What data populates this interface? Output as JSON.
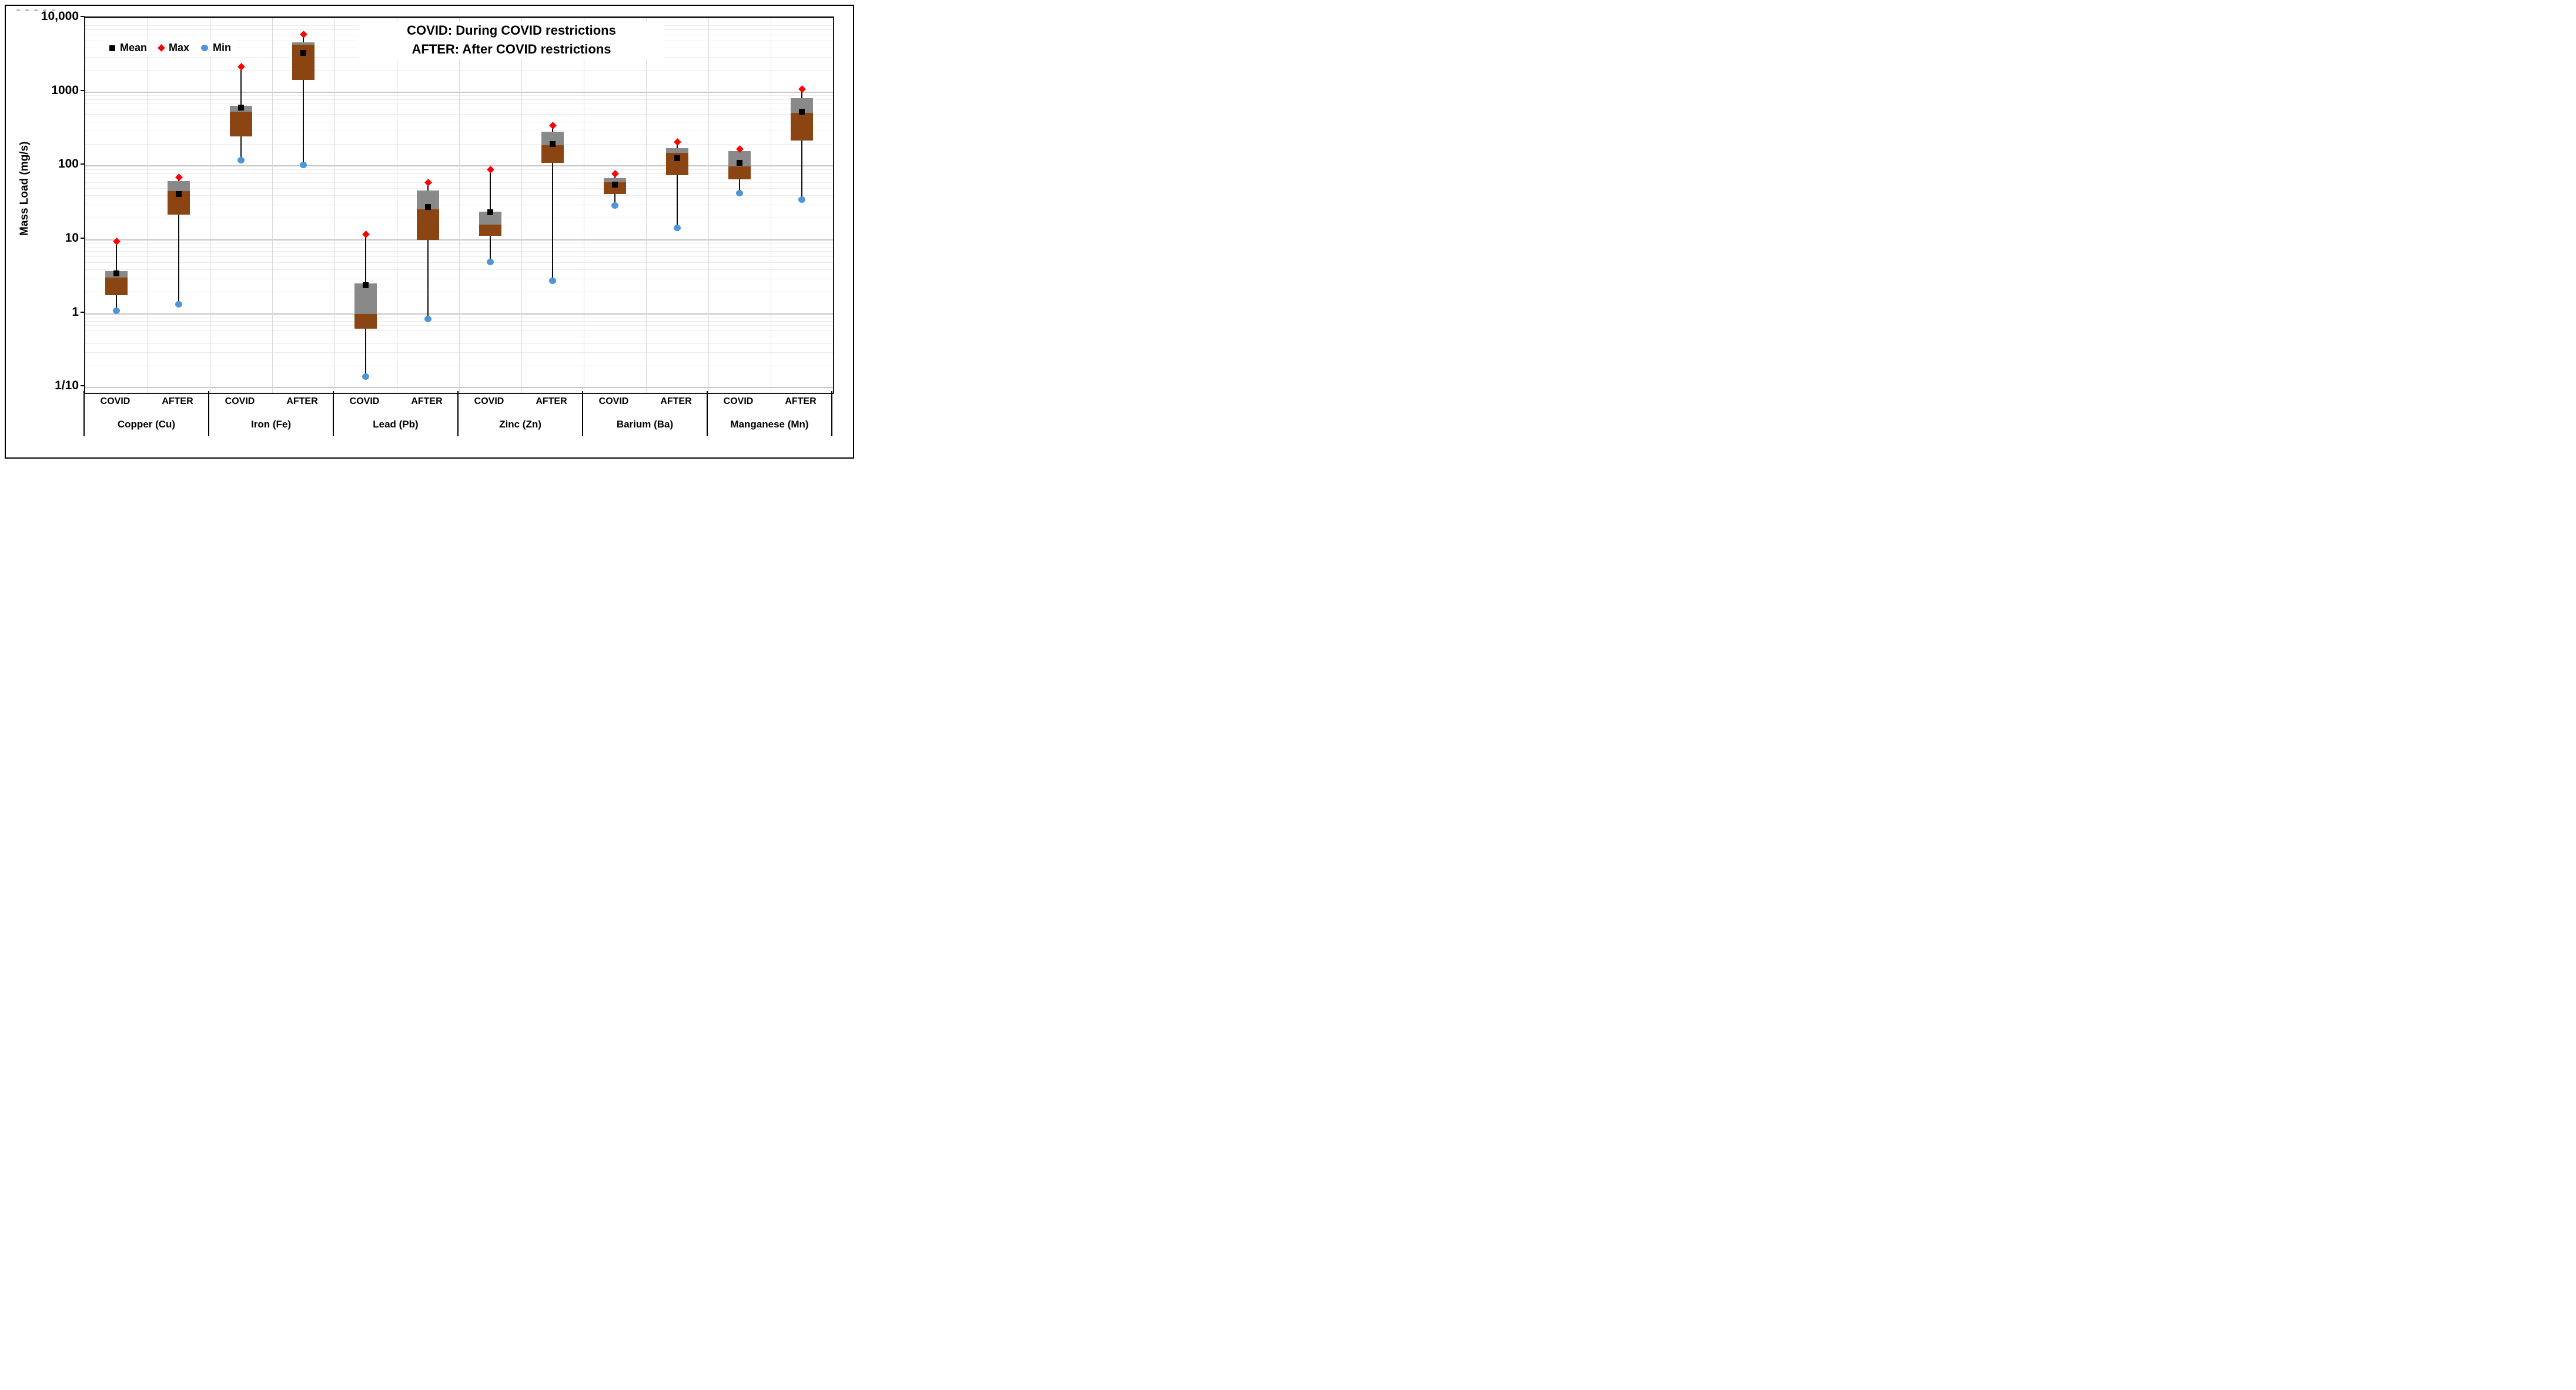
{
  "title": {
    "line1": "COVID: During COVID restrictions",
    "line2": "AFTER: After COVID restrictions"
  },
  "chart_data": {
    "type": "box",
    "title": "COVID: During COVID restrictions | AFTER: After COVID restrictions",
    "ylabel": "Mass Load (mg/s)",
    "y_axis": {
      "scale": "log",
      "ticks": [
        {
          "label": "10,000",
          "value": 10000
        },
        {
          "label": "1000",
          "value": 1000
        },
        {
          "label": "100",
          "value": 100
        },
        {
          "label": "10",
          "value": 10
        },
        {
          "label": "1",
          "value": 1
        },
        {
          "label": "1/10",
          "value": 0.1
        }
      ],
      "ylim": [
        0.055,
        10000
      ],
      "grid": "major decade lines + minor log lines"
    },
    "x_axis": {
      "conditions": [
        "COVID",
        "AFTER"
      ],
      "group_labels": [
        "Copper (Cu)",
        "Iron (Fe)",
        "Lead (Pb)",
        "Zinc (Zn)",
        "Barium (Ba)",
        "Manganese (Mn)"
      ]
    },
    "legend": [
      {
        "label": "Mean",
        "marker": "square",
        "color": "#000000"
      },
      {
        "label": "Max",
        "marker": "diamond",
        "color": "#ff0000"
      },
      {
        "label": "Min",
        "marker": "circle",
        "color": "#4e95d9"
      }
    ],
    "groups": [
      {
        "metal": "Copper (Cu)",
        "boxes": [
          {
            "condition": "COVID",
            "max": 9.5,
            "q3": 3.8,
            "median": 3.1,
            "q1": 1.8,
            "min": 1.1,
            "mean": 3.5
          },
          {
            "condition": "AFTER",
            "max": 70,
            "q3": 63,
            "median": 46,
            "q1": 22,
            "min": 1.35,
            "mean": 42
          }
        ]
      },
      {
        "metal": "Iron (Fe)",
        "boxes": [
          {
            "condition": "COVID",
            "max": 2200,
            "q3": 650,
            "median": 545,
            "q1": 250,
            "min": 120,
            "mean": 620
          },
          {
            "condition": "AFTER",
            "max": 6000,
            "q3": 4700,
            "median": 4400,
            "q1": 1450,
            "min": 103,
            "mean": 3400
          }
        ]
      },
      {
        "metal": "Lead (Pb)",
        "boxes": [
          {
            "condition": "COVID",
            "max": 12,
            "q3": 2.6,
            "median": 1.0,
            "q1": 0.63,
            "min": 0.14,
            "mean": 2.45
          },
          {
            "condition": "AFTER",
            "max": 60,
            "q3": 47,
            "median": 26,
            "q1": 10,
            "min": 0.85,
            "mean": 28
          }
        ]
      },
      {
        "metal": "Zinc (Zn)",
        "boxes": [
          {
            "condition": "COVID",
            "max": 90,
            "q3": 24,
            "median": 16,
            "q1": 11.3,
            "min": 5,
            "mean": 23.5
          },
          {
            "condition": "AFTER",
            "max": 350,
            "q3": 290,
            "median": 190,
            "q1": 110,
            "min": 2.8,
            "mean": 200
          }
        ]
      },
      {
        "metal": "Barium (Ba)",
        "boxes": [
          {
            "condition": "COVID",
            "max": 78,
            "q3": 68,
            "median": 60,
            "q1": 42,
            "min": 29,
            "mean": 56
          },
          {
            "condition": "AFTER",
            "max": 210,
            "q3": 175,
            "median": 150,
            "q1": 75,
            "min": 14.5,
            "mean": 128
          }
        ]
      },
      {
        "metal": "Manganese (Mn)",
        "boxes": [
          {
            "condition": "COVID",
            "max": 170,
            "q3": 160,
            "median": 98,
            "q1": 66,
            "min": 43,
            "mean": 110
          },
          {
            "condition": "AFTER",
            "max": 1100,
            "q3": 820,
            "median": 520,
            "q1": 220,
            "min": 35,
            "mean": 540
          }
        ]
      }
    ],
    "colors": {
      "upper_box": "#898989",
      "lower_box": "#8b4513",
      "max_marker": "#ff0000",
      "min_marker": "#4e95d9",
      "mean_marker": "#000000",
      "whisker": "#0d0d0d"
    },
    "layout_hints": {
      "legend_position": "top-left inside plot",
      "grid": "on"
    }
  }
}
